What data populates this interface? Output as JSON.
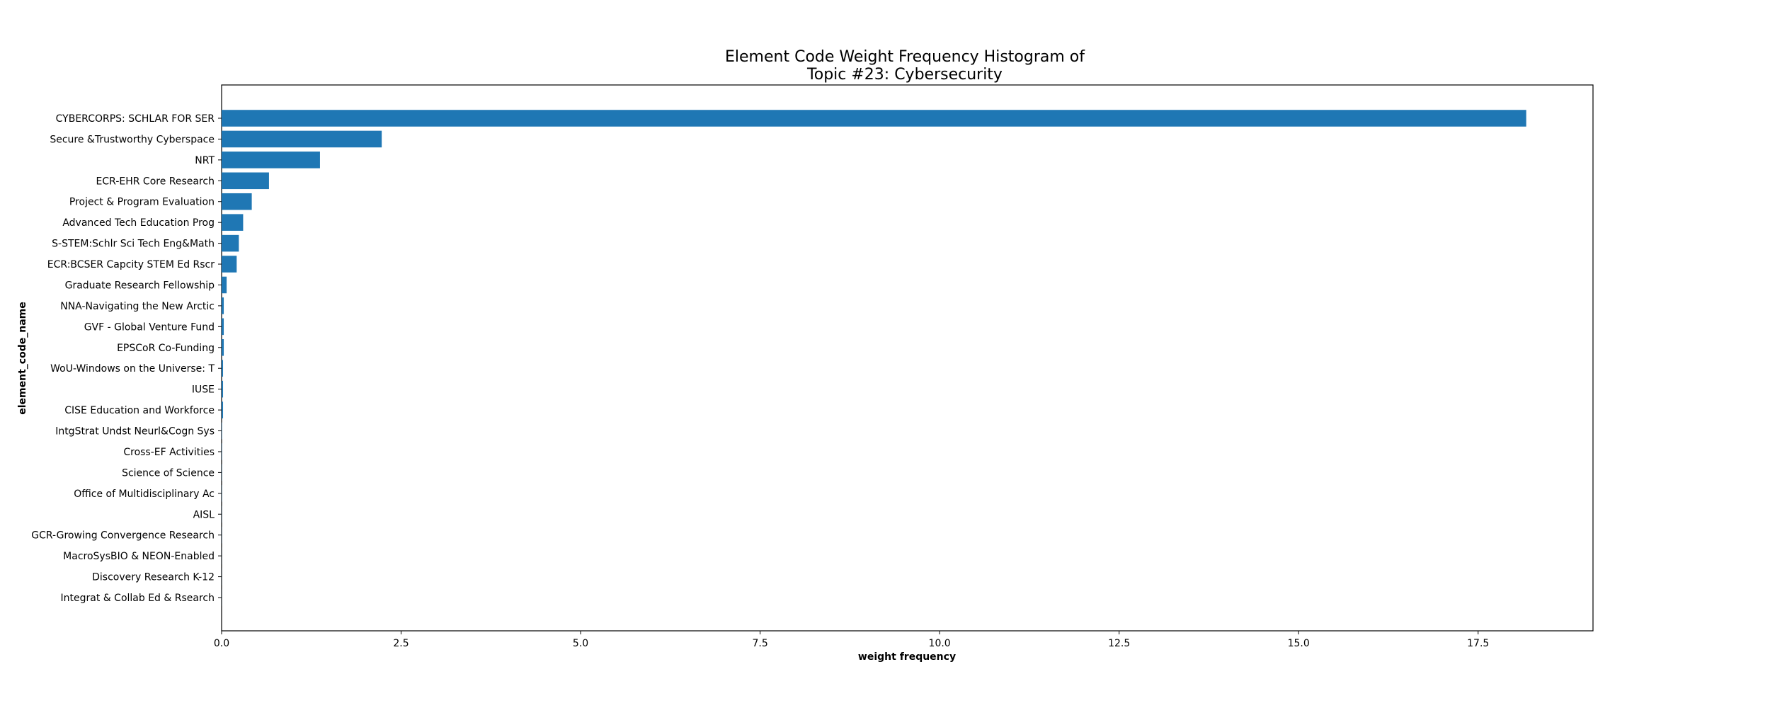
{
  "chart_data": {
    "type": "bar",
    "orientation": "horizontal",
    "title_lines": [
      "Element Code Weight Frequency Histogram of",
      "Topic #23: Cybersecurity"
    ],
    "xlabel": "weight frequency",
    "ylabel": "element_code_name",
    "xlim": [
      0,
      19.1
    ],
    "xticks": [
      0.0,
      2.5,
      5.0,
      7.5,
      10.0,
      12.5,
      15.0,
      17.5
    ],
    "xtick_labels": [
      "0.0",
      "2.5",
      "5.0",
      "7.5",
      "10.0",
      "12.5",
      "15.0",
      "17.5"
    ],
    "bar_color": "#1f77b4",
    "grid": false,
    "categories": [
      "CYBERCORPS: SCHLAR FOR SER",
      "Secure &Trustworthy Cyberspace",
      "NRT",
      "ECR-EHR Core Research",
      "Project & Program Evaluation",
      "Advanced Tech Education Prog",
      "S-STEM:Schlr Sci Tech Eng&Math",
      "ECR:BCSER Capcity STEM Ed Rscr",
      "Graduate Research Fellowship",
      "NNA-Navigating the New Arctic",
      "GVF - Global Venture Fund",
      "EPSCoR Co-Funding",
      "WoU-Windows on the Universe: T",
      "IUSE",
      "CISE Education and Workforce",
      "IntgStrat Undst Neurl&Cogn Sys",
      "Cross-EF Activities",
      "Science of Science",
      "Office of Multidisciplinary Ac",
      "AISL",
      "GCR-Growing Convergence Research",
      "MacroSysBIO & NEON-Enabled",
      "Discovery Research K-12",
      "Integrat & Collab Ed & Rsearch"
    ],
    "values": [
      18.17,
      2.23,
      1.37,
      0.66,
      0.42,
      0.3,
      0.24,
      0.21,
      0.07,
      0.03,
      0.03,
      0.03,
      0.02,
      0.02,
      0.02,
      0.005,
      0.004,
      0.003,
      0.003,
      0.002,
      0.002,
      0.001,
      0.001,
      0.001
    ]
  }
}
